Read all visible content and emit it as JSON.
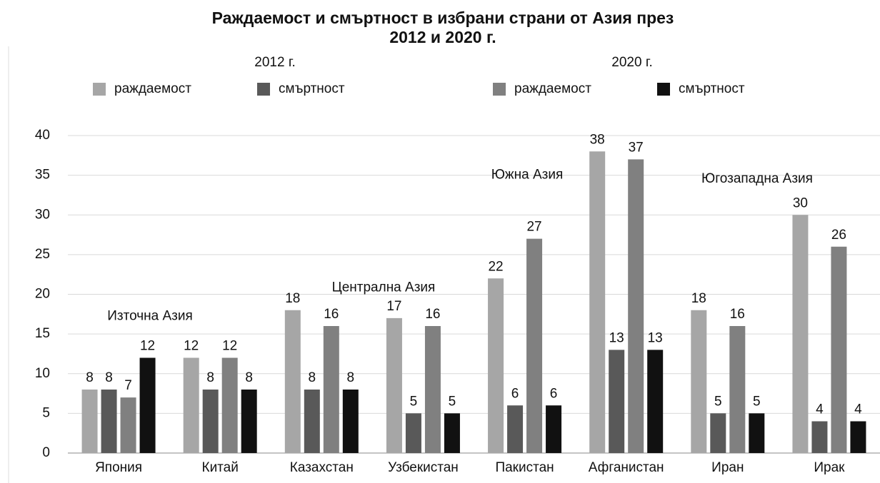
{
  "chart_data": {
    "type": "bar",
    "title": "Раждаемост и смъртност в избрани страни от Азия през",
    "title_line2": "2012 и 2020 г.",
    "legend_groups": [
      "2012 г.",
      "2020 г."
    ],
    "categories": [
      "Япония",
      "Китай",
      "Казахстан",
      "Узбекистан",
      "Пакистан",
      "Афганистан",
      "Иран",
      "Ирак"
    ],
    "series": [
      {
        "name": "раждаемост",
        "color": "#a6a6a6",
        "values": [
          8,
          12,
          18,
          17,
          22,
          38,
          18,
          30
        ]
      },
      {
        "name": "смъртност",
        "color": "#595959",
        "values": [
          8,
          8,
          8,
          5,
          6,
          13,
          5,
          4
        ]
      },
      {
        "name": "раждаемост",
        "color": "#808080",
        "values": [
          7,
          12,
          16,
          16,
          27,
          37,
          16,
          26
        ]
      },
      {
        "name": "смъртност",
        "color": "#111111",
        "values": [
          12,
          8,
          8,
          5,
          6,
          13,
          5,
          4
        ]
      }
    ],
    "annotations": [
      "Източна Азия",
      "Централна Азия",
      "Южна Азия",
      "Югозападна Азия"
    ],
    "ylim": [
      0,
      40
    ],
    "yticks": [
      0,
      5,
      10,
      15,
      20,
      25,
      30,
      35,
      40
    ],
    "grid": true
  }
}
